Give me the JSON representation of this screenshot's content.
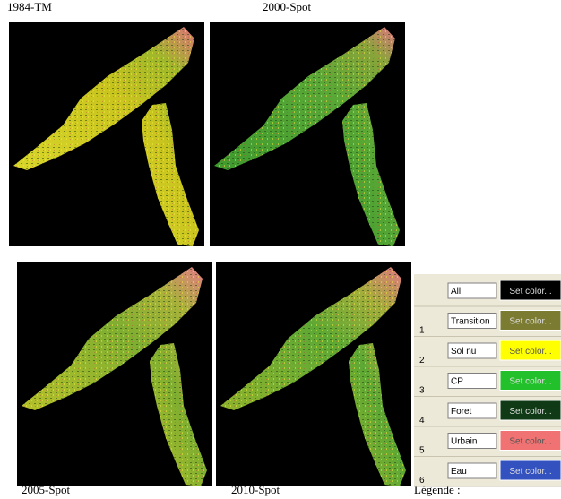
{
  "images": [
    {
      "label": "1984-TM"
    },
    {
      "label": "2000-Spot"
    },
    {
      "label": "2005-Spot"
    },
    {
      "label": "2010-Spot"
    }
  ],
  "legend": {
    "title": "Légende :",
    "rows": [
      {
        "name": "All",
        "button": "Set color...",
        "color": "#000000"
      },
      {
        "number": 1,
        "name": "Transition",
        "button": "Set color...",
        "color": "#7b7b32"
      },
      {
        "number": 2,
        "name": "Sol nu",
        "button": "Set color...",
        "color": "#ffff00"
      },
      {
        "number": 3,
        "name": "CP",
        "button": "Set color...",
        "color": "#22c02a"
      },
      {
        "number": 4,
        "name": "Foret",
        "button": "Set color...",
        "color": "#103a16"
      },
      {
        "number": 5,
        "name": "Urbain",
        "button": "Set color...",
        "color": "#f07272"
      },
      {
        "number": 6,
        "name": "Eau",
        "button": "Set color...",
        "color": "#3352c0"
      }
    ]
  }
}
